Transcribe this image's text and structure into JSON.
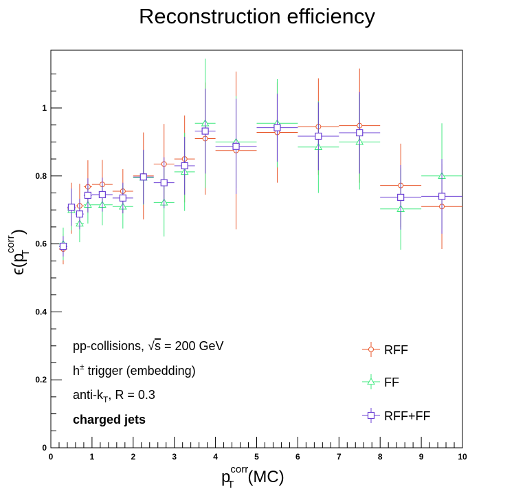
{
  "chart_data": {
    "type": "scatter",
    "title": "Reconstruction efficiency",
    "xlabel": "p_T^corr(MC)",
    "ylabel": "ε(p_T^corr)",
    "xlim": [
      0,
      10
    ],
    "ylim": [
      0,
      1.17
    ],
    "x_ticks": [
      "0",
      "1",
      "2",
      "3",
      "4",
      "5",
      "6",
      "7",
      "8",
      "9",
      "10"
    ],
    "y_ticks": [
      "0",
      "0.2",
      "0.4",
      "0.6",
      "0.8",
      "1"
    ],
    "grid": false,
    "legend_position": "bottom-right",
    "annotations": {
      "line1": "pp-collisions, √s = 200 GeV",
      "line2": "h± trigger (embedding)",
      "line3": "anti-kT, R = 0.3",
      "line4": "charged jets"
    },
    "series": [
      {
        "name": "RFF",
        "color": "#e8562a",
        "marker": "circle",
        "points": [
          {
            "x": 0.3,
            "xerr": 0.1,
            "y": 0.585,
            "yerr": 0.045
          },
          {
            "x": 0.5,
            "xerr": 0.1,
            "y": 0.705,
            "yerr": 0.075
          },
          {
            "x": 0.7,
            "xerr": 0.1,
            "y": 0.712,
            "yerr": 0.065
          },
          {
            "x": 0.9,
            "xerr": 0.1,
            "y": 0.768,
            "yerr": 0.078
          },
          {
            "x": 1.25,
            "xerr": 0.25,
            "y": 0.775,
            "yerr": 0.072
          },
          {
            "x": 1.75,
            "xerr": 0.25,
            "y": 0.755,
            "yerr": 0.065
          },
          {
            "x": 2.25,
            "xerr": 0.25,
            "y": 0.8,
            "yerr": 0.128
          },
          {
            "x": 2.75,
            "xerr": 0.25,
            "y": 0.835,
            "yerr": 0.118
          },
          {
            "x": 3.25,
            "xerr": 0.25,
            "y": 0.85,
            "yerr": 0.128
          },
          {
            "x": 3.75,
            "xerr": 0.25,
            "y": 0.91,
            "yerr": 0.165
          },
          {
            "x": 4.5,
            "xerr": 0.5,
            "y": 0.875,
            "yerr": 0.232
          },
          {
            "x": 5.5,
            "xerr": 0.5,
            "y": 0.928,
            "yerr": 0.148
          },
          {
            "x": 6.5,
            "xerr": 0.5,
            "y": 0.945,
            "yerr": 0.142
          },
          {
            "x": 7.5,
            "xerr": 0.5,
            "y": 0.948,
            "yerr": 0.168
          },
          {
            "x": 8.5,
            "xerr": 0.5,
            "y": 0.772,
            "yerr": 0.123
          },
          {
            "x": 9.5,
            "xerr": 0.5,
            "y": 0.71,
            "yerr": 0.125
          }
        ]
      },
      {
        "name": "FF",
        "color": "#3ee87e",
        "marker": "triangle",
        "points": [
          {
            "x": 0.3,
            "xerr": 0.1,
            "y": 0.6,
            "yerr": 0.048
          },
          {
            "x": 0.5,
            "xerr": 0.1,
            "y": 0.7,
            "yerr": 0.06
          },
          {
            "x": 0.7,
            "xerr": 0.1,
            "y": 0.66,
            "yerr": 0.055
          },
          {
            "x": 0.9,
            "xerr": 0.1,
            "y": 0.715,
            "yerr": 0.055
          },
          {
            "x": 1.25,
            "xerr": 0.25,
            "y": 0.715,
            "yerr": 0.06
          },
          {
            "x": 1.75,
            "xerr": 0.25,
            "y": 0.71,
            "yerr": 0.065
          },
          {
            "x": 2.25,
            "xerr": 0.25,
            "y": 0.795,
            "yerr": 0.08
          },
          {
            "x": 2.75,
            "xerr": 0.25,
            "y": 0.722,
            "yerr": 0.1
          },
          {
            "x": 3.25,
            "xerr": 0.25,
            "y": 0.812,
            "yerr": 0.115
          },
          {
            "x": 3.75,
            "xerr": 0.25,
            "y": 0.955,
            "yerr": 0.19
          },
          {
            "x": 4.5,
            "xerr": 0.5,
            "y": 0.9,
            "yerr": 0.135
          },
          {
            "x": 5.5,
            "xerr": 0.5,
            "y": 0.955,
            "yerr": 0.13
          },
          {
            "x": 6.5,
            "xerr": 0.5,
            "y": 0.885,
            "yerr": 0.135
          },
          {
            "x": 7.5,
            "xerr": 0.5,
            "y": 0.9,
            "yerr": 0.14
          },
          {
            "x": 8.5,
            "xerr": 0.5,
            "y": 0.703,
            "yerr": 0.12
          },
          {
            "x": 9.5,
            "xerr": 0.5,
            "y": 0.8,
            "yerr": 0.155
          }
        ]
      },
      {
        "name": "RFF+FF",
        "color": "#6b3fd4",
        "marker": "square",
        "points": [
          {
            "x": 0.3,
            "xerr": 0.1,
            "y": 0.593,
            "yerr": 0.03
          },
          {
            "x": 0.5,
            "xerr": 0.1,
            "y": 0.708,
            "yerr": 0.055
          },
          {
            "x": 0.7,
            "xerr": 0.1,
            "y": 0.688,
            "yerr": 0.045
          },
          {
            "x": 0.9,
            "xerr": 0.1,
            "y": 0.743,
            "yerr": 0.05
          },
          {
            "x": 1.25,
            "xerr": 0.25,
            "y": 0.745,
            "yerr": 0.05
          },
          {
            "x": 1.75,
            "xerr": 0.25,
            "y": 0.735,
            "yerr": 0.045
          },
          {
            "x": 2.25,
            "xerr": 0.25,
            "y": 0.797,
            "yerr": 0.08
          },
          {
            "x": 2.75,
            "xerr": 0.25,
            "y": 0.78,
            "yerr": 0.075
          },
          {
            "x": 3.25,
            "xerr": 0.25,
            "y": 0.83,
            "yerr": 0.085
          },
          {
            "x": 3.75,
            "xerr": 0.25,
            "y": 0.932,
            "yerr": 0.125
          },
          {
            "x": 4.5,
            "xerr": 0.5,
            "y": 0.887,
            "yerr": 0.14
          },
          {
            "x": 5.5,
            "xerr": 0.5,
            "y": 0.942,
            "yerr": 0.1
          },
          {
            "x": 6.5,
            "xerr": 0.5,
            "y": 0.917,
            "yerr": 0.1
          },
          {
            "x": 7.5,
            "xerr": 0.5,
            "y": 0.927,
            "yerr": 0.12
          },
          {
            "x": 8.5,
            "xerr": 0.5,
            "y": 0.737,
            "yerr": 0.095
          },
          {
            "x": 9.5,
            "xerr": 0.5,
            "y": 0.74,
            "yerr": 0.11
          }
        ]
      }
    ]
  }
}
